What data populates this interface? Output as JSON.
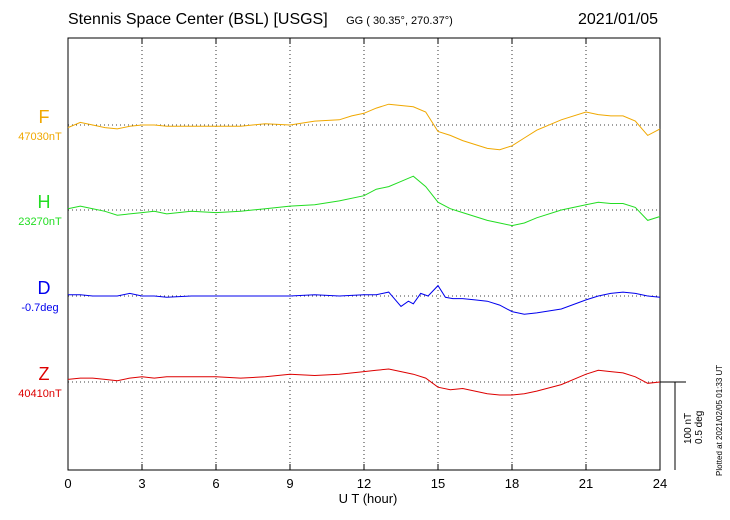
{
  "header": {
    "station": "Stennis Space Center (BSL)  [USGS]",
    "coords": "GG ( 30.35°, 270.37°)",
    "date": "2021/01/05"
  },
  "footer": {
    "xlabel": "U T (hour)",
    "plotted": "Plotted at 2021/02/05 01:33 UT"
  },
  "scale": {
    "nt": "100 nT",
    "deg": "0.5 deg"
  },
  "chart_data": {
    "type": "line",
    "xlabel": "U T (hour)",
    "xlim": [
      0,
      24
    ],
    "xticks": [
      "0",
      "3",
      "6",
      "9",
      "12",
      "15",
      "18",
      "21",
      "24"
    ],
    "grid": true,
    "series": [
      {
        "name": "F",
        "baseline": "47030nT",
        "color": "#f0a800",
        "x": [
          0,
          0.5,
          1,
          1.5,
          2,
          2.5,
          3,
          3.5,
          4,
          5,
          6,
          7,
          8,
          9,
          10,
          11,
          11.5,
          12,
          12.5,
          13,
          13.5,
          14,
          14.5,
          15,
          15.5,
          16,
          16.5,
          17,
          17.5,
          18,
          18.5,
          19,
          20,
          21,
          21.5,
          22,
          22.5,
          23,
          23.5,
          24
        ],
        "y": [
          -2,
          2,
          0,
          -2,
          -3,
          -1,
          0,
          0,
          -1,
          -1,
          -1,
          -1,
          1,
          0,
          3,
          4,
          7,
          9,
          13,
          16,
          15,
          14,
          10,
          -5,
          -8,
          -12,
          -15,
          -18,
          -19,
          -16,
          -10,
          -4,
          4,
          10,
          8,
          7,
          7,
          3,
          -8,
          -3
        ]
      },
      {
        "name": "H",
        "baseline": "23270nT",
        "color": "#22dd22",
        "x": [
          0,
          0.5,
          1,
          1.5,
          2,
          2.5,
          3,
          3.5,
          4,
          5,
          6,
          7,
          8,
          9,
          10,
          11,
          12,
          12.5,
          13,
          13.5,
          14,
          14.5,
          15,
          15.5,
          16,
          16.5,
          17,
          17.5,
          18,
          18.5,
          19,
          20,
          21,
          21.5,
          22,
          22.5,
          23,
          23.5,
          24
        ],
        "y": [
          1,
          3,
          1,
          -1,
          -4,
          -3,
          -2,
          -1,
          -3,
          -1,
          -2,
          -1,
          1,
          3,
          4,
          7,
          11,
          16,
          18,
          22,
          26,
          18,
          6,
          1,
          -2,
          -5,
          -8,
          -10,
          -12,
          -10,
          -6,
          0,
          4,
          6,
          5,
          5,
          2,
          -8,
          -5
        ]
      },
      {
        "name": "D",
        "baseline": "-0.7deg",
        "color": "#0000ee",
        "x": [
          0,
          0.5,
          1,
          1.5,
          2,
          2.5,
          3,
          3.5,
          4,
          5,
          6,
          7,
          8,
          9,
          10,
          11,
          12,
          12.5,
          13,
          13.5,
          13.8,
          14,
          14.3,
          14.6,
          15,
          15.3,
          15.6,
          16,
          16.5,
          17,
          17.5,
          18,
          18.5,
          19,
          20,
          21,
          21.5,
          22,
          22.5,
          23,
          23.5,
          24
        ],
        "y": [
          1,
          1,
          0,
          0,
          0,
          2,
          0,
          0,
          -1,
          0,
          0,
          0,
          0,
          0,
          1,
          0,
          1,
          1,
          3,
          -8,
          -4,
          -6,
          2,
          0,
          8,
          -1,
          -2,
          -2,
          -3,
          -4,
          -7,
          -12,
          -14,
          -13,
          -10,
          -3,
          0,
          2,
          3,
          2,
          0,
          -1
        ]
      },
      {
        "name": "Z",
        "baseline": "40410nT",
        "color": "#dd0000",
        "x": [
          0,
          0.5,
          1,
          1.5,
          2,
          2.5,
          3,
          3.5,
          4,
          5,
          6,
          7,
          8,
          9,
          10,
          11,
          12,
          12.5,
          13,
          13.5,
          14,
          14.5,
          15,
          15.5,
          16,
          16.5,
          17,
          17.5,
          18,
          18.5,
          19,
          20,
          21,
          21.5,
          22,
          22.5,
          23,
          23.5,
          24
        ],
        "y": [
          2,
          3,
          3,
          2,
          1,
          3,
          4,
          3,
          4,
          4,
          4,
          3,
          4,
          6,
          5,
          6,
          8,
          9,
          10,
          8,
          6,
          3,
          -4,
          -6,
          -5,
          -7,
          -9,
          -10,
          -10,
          -9,
          -7,
          -2,
          6,
          9,
          8,
          7,
          4,
          -1,
          0
        ]
      }
    ]
  }
}
